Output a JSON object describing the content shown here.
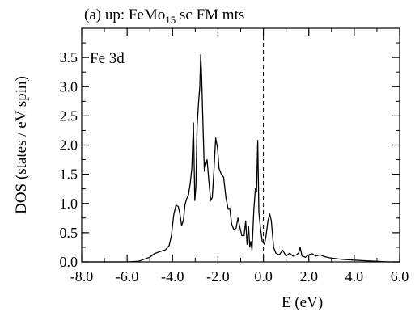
{
  "chart_data": {
    "type": "line",
    "title": "(a) up: FeMo",
    "title_subscript": "15",
    "title_suffix": " sc FM mts",
    "annotation": "Fe 3d",
    "xlabel": "E (eV)",
    "ylabel": "DOS (states / eV spin)",
    "xlim": [
      -8.0,
      6.0
    ],
    "ylim": [
      0.0,
      4.0
    ],
    "x_ticks": [
      -8.0,
      -6.0,
      -4.0,
      -2.0,
      0.0,
      2.0,
      4.0,
      6.0
    ],
    "x_tick_labels": [
      "-8.0",
      "-6.0",
      "-4.0",
      "-2.0",
      "0.0",
      "2.0",
      "4.0",
      "6.0"
    ],
    "y_ticks": [
      0.0,
      0.5,
      1.0,
      1.5,
      2.0,
      2.5,
      3.0,
      3.5
    ],
    "y_tick_labels": [
      "0.0",
      "0.5",
      "1.0",
      "1.5",
      "2.0",
      "2.5",
      "3.0",
      "3.5"
    ],
    "fermi_level": 0.0,
    "grid": false,
    "series": [
      {
        "color": "#000000",
        "points": [
          [
            -8.0,
            0.0
          ],
          [
            -6.0,
            0.0
          ],
          [
            -5.5,
            0.01
          ],
          [
            -5.0,
            0.08
          ],
          [
            -4.8,
            0.14
          ],
          [
            -4.6,
            0.17
          ],
          [
            -4.45,
            0.19
          ],
          [
            -4.3,
            0.21
          ],
          [
            -4.15,
            0.28
          ],
          [
            -4.05,
            0.45
          ],
          [
            -3.95,
            0.8
          ],
          [
            -3.85,
            0.97
          ],
          [
            -3.75,
            0.95
          ],
          [
            -3.68,
            0.83
          ],
          [
            -3.6,
            0.62
          ],
          [
            -3.52,
            0.72
          ],
          [
            -3.45,
            0.98
          ],
          [
            -3.38,
            1.08
          ],
          [
            -3.3,
            1.14
          ],
          [
            -3.22,
            1.35
          ],
          [
            -3.15,
            1.6
          ],
          [
            -3.08,
            2.38
          ],
          [
            -3.02,
            1.05
          ],
          [
            -2.97,
            1.3
          ],
          [
            -2.92,
            2.3
          ],
          [
            -2.86,
            2.7
          ],
          [
            -2.8,
            3.0
          ],
          [
            -2.76,
            3.55
          ],
          [
            -2.72,
            3.2
          ],
          [
            -2.67,
            2.5
          ],
          [
            -2.6,
            1.55
          ],
          [
            -2.55,
            1.65
          ],
          [
            -2.48,
            1.75
          ],
          [
            -2.4,
            1.38
          ],
          [
            -2.32,
            1.05
          ],
          [
            -2.25,
            1.1
          ],
          [
            -2.18,
            1.55
          ],
          [
            -2.1,
            2.12
          ],
          [
            -2.02,
            1.95
          ],
          [
            -1.95,
            1.6
          ],
          [
            -1.85,
            1.5
          ],
          [
            -1.75,
            1.45
          ],
          [
            -1.65,
            1.1
          ],
          [
            -1.55,
            0.9
          ],
          [
            -1.48,
            0.92
          ],
          [
            -1.4,
            0.65
          ],
          [
            -1.3,
            0.55
          ],
          [
            -1.2,
            0.58
          ],
          [
            -1.12,
            0.75
          ],
          [
            -1.05,
            0.62
          ],
          [
            -0.95,
            0.45
          ],
          [
            -0.85,
            0.45
          ],
          [
            -0.78,
            0.7
          ],
          [
            -0.72,
            0.3
          ],
          [
            -0.65,
            0.6
          ],
          [
            -0.6,
            0.25
          ],
          [
            -0.55,
            0.35
          ],
          [
            -0.5,
            0.2
          ],
          [
            -0.42,
            0.9
          ],
          [
            -0.35,
            1.25
          ],
          [
            -0.3,
            1.2
          ],
          [
            -0.25,
            2.08
          ],
          [
            -0.2,
            0.85
          ],
          [
            -0.12,
            0.55
          ],
          [
            -0.05,
            0.35
          ],
          [
            0.05,
            0.3
          ],
          [
            0.12,
            0.45
          ],
          [
            0.2,
            0.7
          ],
          [
            0.28,
            0.82
          ],
          [
            0.35,
            0.7
          ],
          [
            0.45,
            0.25
          ],
          [
            0.55,
            0.15
          ],
          [
            0.7,
            0.12
          ],
          [
            0.85,
            0.2
          ],
          [
            1.0,
            0.1
          ],
          [
            1.15,
            0.15
          ],
          [
            1.3,
            0.1
          ],
          [
            1.45,
            0.12
          ],
          [
            1.55,
            0.15
          ],
          [
            1.62,
            0.25
          ],
          [
            1.7,
            0.1
          ],
          [
            1.85,
            0.08
          ],
          [
            2.0,
            0.12
          ],
          [
            2.15,
            0.14
          ],
          [
            2.3,
            0.1
          ],
          [
            2.5,
            0.12
          ],
          [
            2.7,
            0.09
          ],
          [
            2.9,
            0.07
          ],
          [
            3.1,
            0.06
          ],
          [
            3.3,
            0.05
          ],
          [
            3.6,
            0.04
          ],
          [
            4.0,
            0.03
          ],
          [
            4.5,
            0.02
          ],
          [
            5.0,
            0.01
          ],
          [
            5.5,
            0.0
          ],
          [
            6.0,
            0.0
          ]
        ]
      }
    ]
  }
}
